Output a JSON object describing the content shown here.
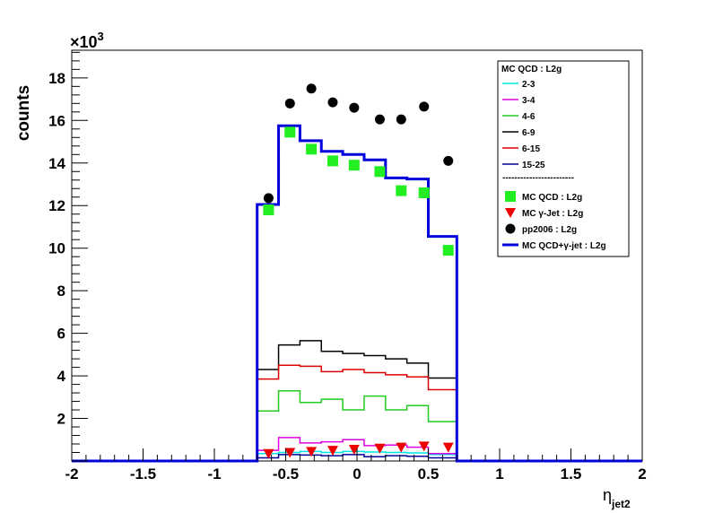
{
  "chart_data": {
    "type": "histogram",
    "title": "",
    "xlabel": "η",
    "xlabel_sub": "jet2",
    "ylabel": "counts",
    "y_multiplier": "×10",
    "y_multiplier_exp": "3",
    "xlim": [
      -2,
      2
    ],
    "ylim": [
      0,
      19.3
    ],
    "x_ticks": [
      {
        "v": -2,
        "label": "-2"
      },
      {
        "v": -1.5,
        "label": "-1.5"
      },
      {
        "v": -1,
        "label": "-1"
      },
      {
        "v": -0.5,
        "label": "-0.5"
      },
      {
        "v": 0,
        "label": "0"
      },
      {
        "v": 0.5,
        "label": "0.5"
      },
      {
        "v": 1,
        "label": "1"
      },
      {
        "v": 1.5,
        "label": "1.5"
      },
      {
        "v": 2,
        "label": "2"
      }
    ],
    "y_ticks": [
      {
        "v": 2,
        "label": "2"
      },
      {
        "v": 4,
        "label": "4"
      },
      {
        "v": 6,
        "label": "6"
      },
      {
        "v": 8,
        "label": "8"
      },
      {
        "v": 10,
        "label": "10"
      },
      {
        "v": 12,
        "label": "12"
      },
      {
        "v": 14,
        "label": "14"
      },
      {
        "v": 16,
        "label": "16"
      },
      {
        "v": 18,
        "label": "18"
      }
    ],
    "bin_edges": [
      -0.7,
      -0.55,
      -0.4,
      -0.25,
      -0.1,
      0.05,
      0.2,
      0.35,
      0.5,
      0.7
    ],
    "legend_header": "MC QCD : L2g",
    "legend_separator": "------------------------",
    "histograms": [
      {
        "name": "2-3",
        "color": "#00e5e5",
        "width": 1.5,
        "values": [
          0.35,
          0.4,
          0.45,
          0.4,
          0.45,
          0.42,
          0.4,
          0.38,
          0.3
        ]
      },
      {
        "name": "3-4",
        "color": "#e000e0",
        "width": 1.5,
        "values": [
          0.5,
          1.1,
          0.85,
          0.9,
          1.0,
          0.72,
          0.75,
          0.65,
          0.35
        ]
      },
      {
        "name": "4-6",
        "color": "#22cc22",
        "width": 1.5,
        "values": [
          2.35,
          3.3,
          2.75,
          2.9,
          2.4,
          3.05,
          2.4,
          2.6,
          1.85
        ]
      },
      {
        "name": "6-9",
        "color": "#000000",
        "width": 1.5,
        "values": [
          4.3,
          5.45,
          5.65,
          5.15,
          5.05,
          4.95,
          4.8,
          4.6,
          3.9
        ]
      },
      {
        "name": "6-15",
        "color": "#dd0000",
        "width": 1.5,
        "values": [
          3.85,
          4.5,
          4.45,
          4.2,
          4.3,
          4.15,
          4.05,
          3.95,
          3.35
        ]
      },
      {
        "name": "15-25",
        "color": "#000099",
        "width": 1.5,
        "values": [
          0.15,
          0.3,
          0.28,
          0.25,
          0.3,
          0.2,
          0.25,
          0.22,
          0.15
        ]
      }
    ],
    "points": [
      {
        "name": "MC QCD : L2g",
        "marker": "square",
        "color": "#22ee22",
        "x": [
          -0.62,
          -0.47,
          -0.32,
          -0.17,
          -0.02,
          0.16,
          0.31,
          0.47,
          0.64
        ],
        "y": [
          11.8,
          15.45,
          14.65,
          14.1,
          13.9,
          13.6,
          12.7,
          12.6,
          9.9
        ]
      },
      {
        "name": "MC γ-Jet : L2g",
        "marker": "triangle-down",
        "color": "#ee0000",
        "x": [
          -0.62,
          -0.47,
          -0.32,
          -0.17,
          -0.02,
          0.16,
          0.31,
          0.47,
          0.64
        ],
        "y": [
          0.35,
          0.4,
          0.45,
          0.5,
          0.55,
          0.6,
          0.65,
          0.7,
          0.65
        ]
      },
      {
        "name": "pp2006 : L2g",
        "marker": "circle",
        "color": "#000000",
        "x": [
          -0.62,
          -0.47,
          -0.32,
          -0.17,
          -0.02,
          0.16,
          0.31,
          0.47,
          0.64
        ],
        "y": [
          12.35,
          16.8,
          17.5,
          16.85,
          16.6,
          16.05,
          16.05,
          16.65,
          14.1
        ]
      }
    ],
    "total": {
      "name": "MC QCD+γ-jet : L2g",
      "color": "#0000dd",
      "width": 3,
      "values": [
        12.05,
        15.75,
        15.05,
        14.55,
        14.4,
        14.15,
        13.3,
        13.25,
        10.55
      ]
    },
    "legend_position": "top-right"
  }
}
